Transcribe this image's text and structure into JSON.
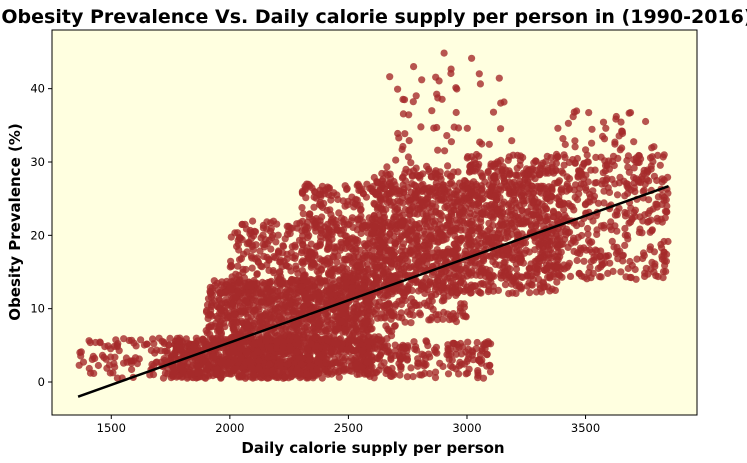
{
  "chart_data": {
    "type": "scatter",
    "title": "Obesity Prevalence Vs. Daily calorie supply per person in (1990-2016)",
    "xlabel": "Daily calorie supply per person",
    "ylabel": "Obesity Prevalence (%)",
    "xlim": [
      1250,
      3970
    ],
    "ylim": [
      -4.5,
      48
    ],
    "xticks": [
      1500,
      2000,
      2500,
      3000,
      3500
    ],
    "yticks": [
      0,
      10,
      20,
      30,
      40
    ],
    "grid": false,
    "legend": "none",
    "colors": {
      "background": "#ffffe0",
      "points": "#a52a2a",
      "trendline": "#000000"
    },
    "trendline": {
      "x": [
        1360,
        3850
      ],
      "y": [
        -2.0,
        26.7
      ]
    },
    "clusters": [
      {
        "x_range": [
          1360,
          1900
        ],
        "y_range": [
          0.5,
          6
        ],
        "count": 120
      },
      {
        "x_range": [
          1750,
          2400
        ],
        "y_range": [
          0.5,
          6
        ],
        "count": 700
      },
      {
        "x_range": [
          1900,
          2600
        ],
        "y_range": [
          1,
          14
        ],
        "count": 900
      },
      {
        "x_range": [
          2000,
          2700
        ],
        "y_range": [
          4,
          22
        ],
        "count": 700
      },
      {
        "x_range": [
          2300,
          3000
        ],
        "y_range": [
          8,
          27
        ],
        "count": 700
      },
      {
        "x_range": [
          2600,
          3400
        ],
        "y_range": [
          12,
          29
        ],
        "count": 900
      },
      {
        "x_range": [
          3000,
          3850
        ],
        "y_range": [
          14,
          31
        ],
        "count": 700
      },
      {
        "x_range": [
          2400,
          3100
        ],
        "y_range": [
          0.5,
          6
        ],
        "count": 250
      },
      {
        "x_range": [
          2650,
          3200
        ],
        "y_range": [
          25,
          45
        ],
        "count": 80
      },
      {
        "x_range": [
          3350,
          3800
        ],
        "y_range": [
          30,
          37
        ],
        "count": 40
      }
    ]
  }
}
